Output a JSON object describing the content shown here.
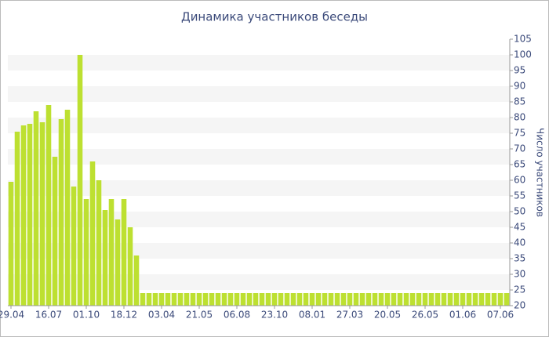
{
  "chart_data": {
    "type": "bar",
    "title": "Динамика участников беседы",
    "y_axis_label": "Число участников",
    "categories": [
      "29.04",
      null,
      null,
      null,
      null,
      null,
      "16.07",
      null,
      null,
      null,
      null,
      null,
      "01.10",
      null,
      null,
      null,
      null,
      null,
      "18.12",
      null,
      null,
      null,
      null,
      null,
      "03.04",
      null,
      null,
      null,
      null,
      null,
      "21.05",
      null,
      null,
      null,
      null,
      null,
      "06.08",
      null,
      null,
      null,
      null,
      null,
      "23.10",
      null,
      null,
      null,
      null,
      null,
      "08.01",
      null,
      null,
      null,
      null,
      null,
      "27.03",
      null,
      null,
      null,
      null,
      null,
      "20.05",
      null,
      null,
      null,
      null,
      null,
      "26.05",
      null,
      null,
      null,
      null,
      null,
      "01.06",
      null,
      null,
      null,
      null,
      null,
      "07.06",
      null
    ],
    "values": [
      59.5,
      75.5,
      77.5,
      78,
      82,
      78.5,
      84,
      67.5,
      79.5,
      82.5,
      58,
      100,
      54,
      66,
      60,
      50.5,
      54,
      47.5,
      54,
      45,
      36,
      24,
      24,
      24,
      24,
      24,
      24,
      24,
      24,
      24,
      24,
      24,
      24,
      24,
      24,
      24,
      24,
      24,
      24,
      24,
      24,
      24,
      24,
      24,
      24,
      24,
      24,
      24,
      24,
      24,
      24,
      24,
      24,
      24,
      24,
      24,
      24,
      24,
      24,
      24,
      24,
      24,
      24,
      24,
      24,
      24,
      24,
      24,
      24,
      24,
      24,
      24,
      24,
      24,
      24,
      24,
      24,
      24,
      24,
      24
    ],
    "color": "#bde031",
    "ylim": [
      20,
      105
    ],
    "yticks": [
      20,
      25,
      30,
      35,
      40,
      45,
      50,
      55,
      60,
      65,
      70,
      75,
      80,
      85,
      90,
      95,
      100,
      105
    ],
    "grid": true
  }
}
